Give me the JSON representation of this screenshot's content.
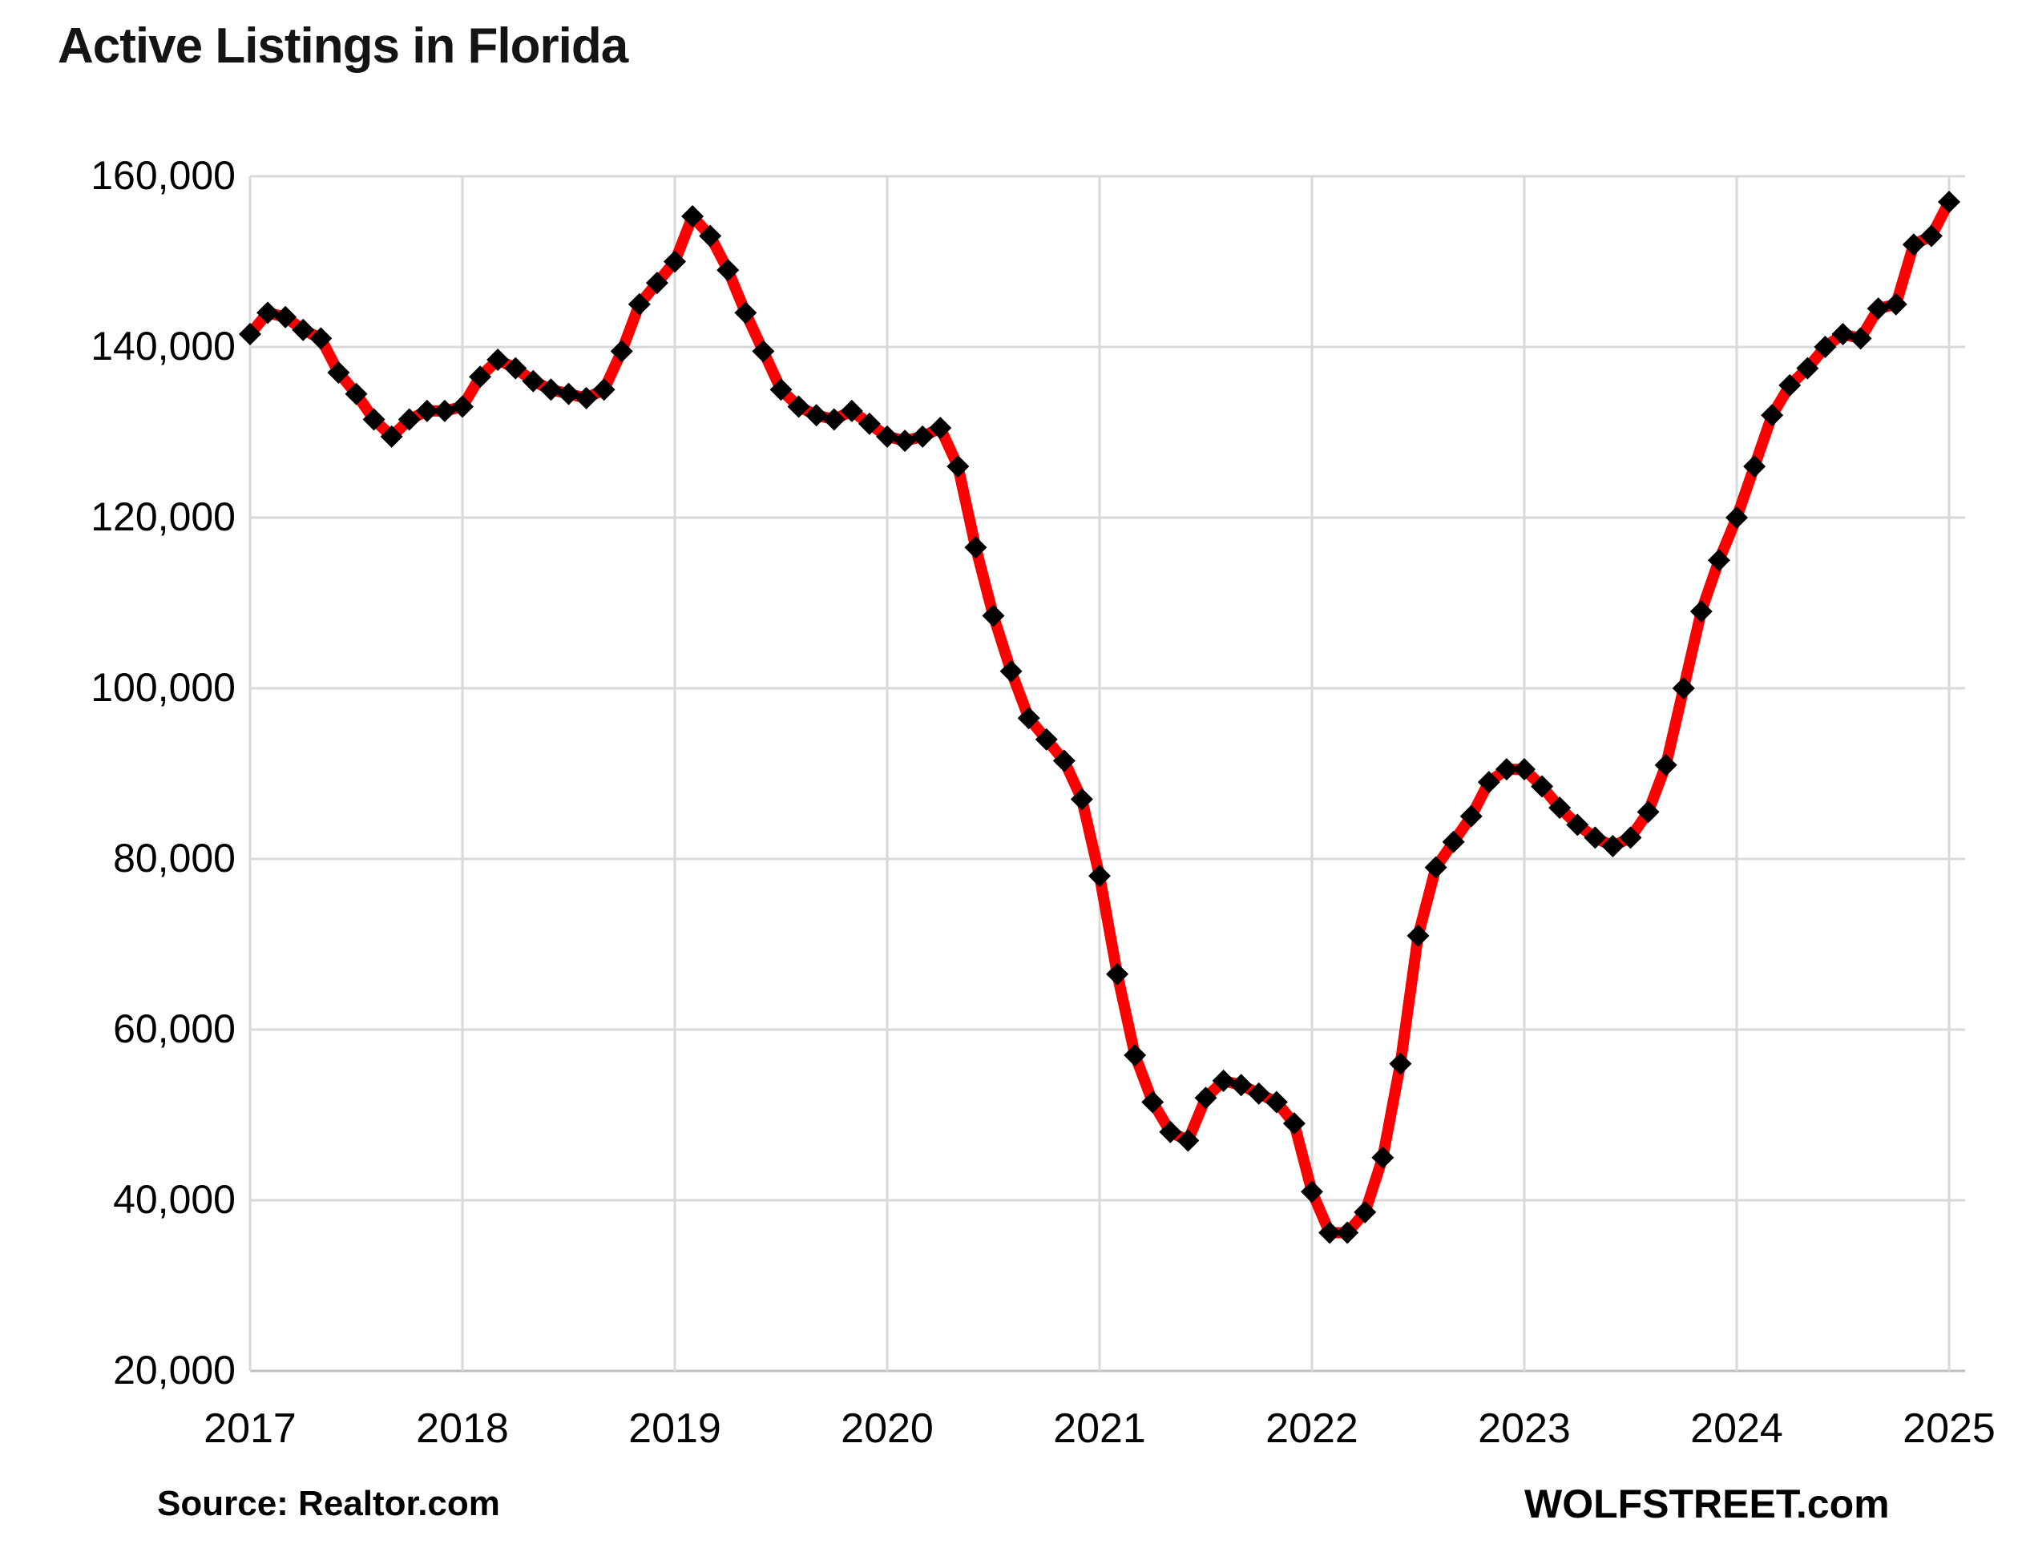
{
  "title": "Active Listings in Florida",
  "footer": {
    "source_label": "Source: Realtor.com",
    "brand_label": "WOLFSTREET.com"
  },
  "colors": {
    "line": "#fe0000",
    "marker": "#000000",
    "gridline": "#d9d9d9",
    "axis_line": "#bfbfbf",
    "text": "#000000"
  },
  "chart_data": {
    "type": "line",
    "title": "Active Listings in Florida",
    "xlabel": "",
    "ylabel": "",
    "frequency": "monthly",
    "x_start": "2017-01",
    "x_end": "2025-01",
    "x_tick_labels": [
      "2017",
      "2018",
      "2019",
      "2020",
      "2021",
      "2022",
      "2023",
      "2024",
      "2025"
    ],
    "y_tick_labels": [
      "160,000",
      "140,000",
      "120,000",
      "100,000",
      "80,000",
      "60,000",
      "40,000",
      "20,000"
    ],
    "ylim": [
      20000,
      160000
    ],
    "y_step": 20000,
    "grid": true,
    "legend_position": "none",
    "series": [
      {
        "name": "Active listings",
        "marker": "diamond",
        "values": [
          141500,
          144000,
          143500,
          142000,
          141000,
          137000,
          134500,
          131500,
          129500,
          131500,
          132500,
          132500,
          133000,
          136500,
          138500,
          137500,
          136000,
          135000,
          134500,
          134000,
          135000,
          139500,
          145000,
          147500,
          150000,
          155300,
          153000,
          149000,
          144000,
          139500,
          135000,
          133000,
          132000,
          131500,
          132500,
          131000,
          129500,
          129000,
          129500,
          130500,
          126000,
          116500,
          108500,
          102000,
          96500,
          94000,
          91500,
          87000,
          78000,
          66500,
          57000,
          51500,
          48000,
          47000,
          52000,
          54000,
          53500,
          52500,
          51500,
          49000,
          41000,
          36200,
          36200,
          38600,
          45000,
          56000,
          71000,
          79000,
          82000,
          85000,
          89000,
          90500,
          90500,
          88500,
          86000,
          84000,
          82500,
          81500,
          82500,
          85500,
          91000,
          100000,
          109000,
          115000,
          120000,
          126000,
          132000,
          135500,
          137500,
          140000,
          141500,
          141000,
          144500,
          145000,
          152000,
          153000,
          157000
        ]
      }
    ]
  }
}
